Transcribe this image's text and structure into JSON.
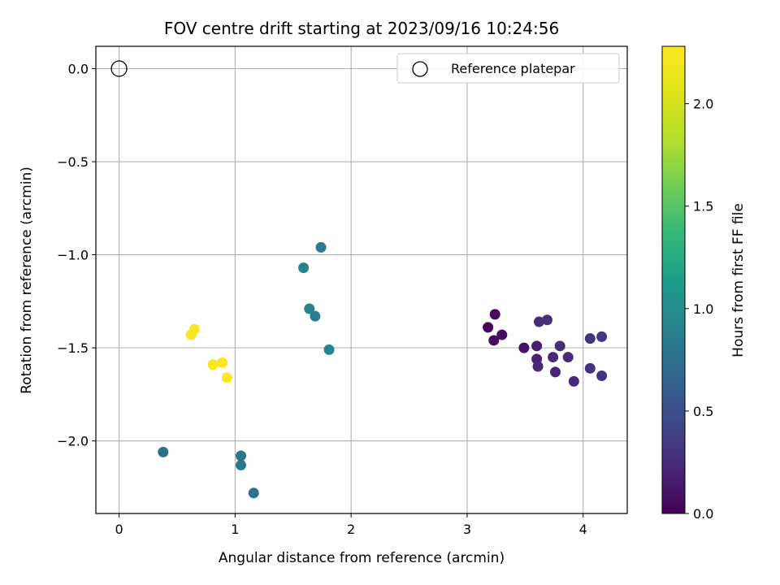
{
  "chart_data": {
    "type": "scatter",
    "title": "FOV centre drift starting at 2023/09/16 10:24:56",
    "xlabel": "Angular distance from reference (arcmin)",
    "ylabel": "Rotation from reference (arcmin)",
    "xlim": [
      -0.2,
      4.38
    ],
    "ylim": [
      -2.39,
      0.12
    ],
    "xticks": [
      0,
      1,
      2,
      3,
      4
    ],
    "xtick_labels": [
      "0",
      "1",
      "2",
      "3",
      "4"
    ],
    "yticks": [
      0.0,
      -0.5,
      -1.0,
      -1.5,
      -2.0
    ],
    "ytick_labels": [
      "0.0",
      "−0.5",
      "−1.0",
      "−1.5",
      "−2.0"
    ],
    "grid": true,
    "legend": {
      "position": "top-right",
      "entries": [
        "Reference platepar"
      ]
    },
    "reference_point": {
      "x": 0.0,
      "y": 0.0
    },
    "colorbar": {
      "label": "Hours from first FF file",
      "range": [
        0.0,
        2.28
      ],
      "ticks": [
        0.0,
        0.5,
        1.0,
        1.5,
        2.0
      ],
      "tick_labels": [
        "0.0",
        "0.5",
        "1.0",
        "1.5",
        "2.0"
      ],
      "colormap": "viridis"
    },
    "points": [
      {
        "x": 3.18,
        "y": -1.39,
        "hours": 0.02
      },
      {
        "x": 3.24,
        "y": -1.32,
        "hours": 0.04
      },
      {
        "x": 3.23,
        "y": -1.46,
        "hours": 0.05
      },
      {
        "x": 3.3,
        "y": -1.43,
        "hours": 0.07
      },
      {
        "x": 3.49,
        "y": -1.5,
        "hours": 0.1
      },
      {
        "x": 3.6,
        "y": -1.49,
        "hours": 0.18
      },
      {
        "x": 3.6,
        "y": -1.56,
        "hours": 0.2
      },
      {
        "x": 3.61,
        "y": -1.6,
        "hours": 0.22
      },
      {
        "x": 3.62,
        "y": -1.36,
        "hours": 0.26
      },
      {
        "x": 3.69,
        "y": -1.35,
        "hours": 0.28
      },
      {
        "x": 3.74,
        "y": -1.55,
        "hours": 0.24
      },
      {
        "x": 3.76,
        "y": -1.63,
        "hours": 0.21
      },
      {
        "x": 3.8,
        "y": -1.49,
        "hours": 0.27
      },
      {
        "x": 3.87,
        "y": -1.55,
        "hours": 0.25
      },
      {
        "x": 3.92,
        "y": -1.68,
        "hours": 0.23
      },
      {
        "x": 4.06,
        "y": -1.45,
        "hours": 0.3
      },
      {
        "x": 4.06,
        "y": -1.61,
        "hours": 0.29
      },
      {
        "x": 4.16,
        "y": -1.44,
        "hours": 0.32
      },
      {
        "x": 4.16,
        "y": -1.65,
        "hours": 0.31
      },
      {
        "x": 0.38,
        "y": -2.06,
        "hours": 0.75
      },
      {
        "x": 1.05,
        "y": -2.08,
        "hours": 0.8
      },
      {
        "x": 1.05,
        "y": -2.13,
        "hours": 0.82
      },
      {
        "x": 1.16,
        "y": -2.28,
        "hours": 0.78
      },
      {
        "x": 1.59,
        "y": -1.07,
        "hours": 0.92
      },
      {
        "x": 1.74,
        "y": -0.96,
        "hours": 0.86
      },
      {
        "x": 1.64,
        "y": -1.29,
        "hours": 0.9
      },
      {
        "x": 1.69,
        "y": -1.33,
        "hours": 0.88
      },
      {
        "x": 1.81,
        "y": -1.51,
        "hours": 0.94
      },
      {
        "x": 0.62,
        "y": -1.43,
        "hours": 2.26
      },
      {
        "x": 0.65,
        "y": -1.4,
        "hours": 2.25
      },
      {
        "x": 0.81,
        "y": -1.59,
        "hours": 2.24
      },
      {
        "x": 0.89,
        "y": -1.58,
        "hours": 2.26
      },
      {
        "x": 0.93,
        "y": -1.66,
        "hours": 2.27
      }
    ]
  }
}
